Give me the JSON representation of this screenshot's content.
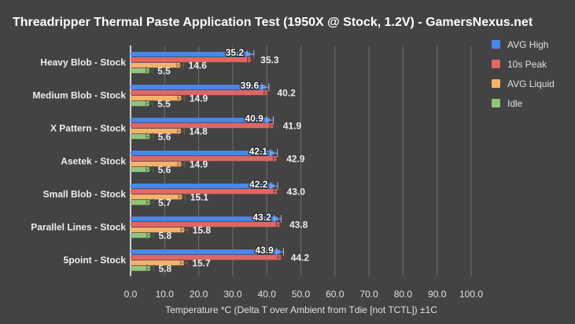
{
  "chart_data": {
    "type": "bar",
    "orientation": "horizontal",
    "title": "Threadripper Thermal Paste Application Test (1950X @ Stock, 1.2V) - GamersNexus.net",
    "xlabel": "Temperature *C (Delta T over Ambient from Tdie [not TCTL]) ±1C",
    "ylabel": "",
    "xlim": [
      0,
      100
    ],
    "xticks": [
      "0.0",
      "10.0",
      "20.0",
      "30.0",
      "40.0",
      "50.0",
      "60.0",
      "70.0",
      "80.0",
      "90.0",
      "100.0"
    ],
    "grid": true,
    "legend_position": "right",
    "error_bar": 1,
    "categories": [
      "Heavy Blob - Stock",
      "Medium Blob  - Stock",
      "X Pattern - Stock",
      "Asetek - Stock",
      "Small Blob - Stock",
      "Parallel Lines - Stock",
      "5point - Stock"
    ],
    "series": [
      {
        "name": "AVG High",
        "color": "#4a86e8",
        "values": [
          35.2,
          39.6,
          40.9,
          42.1,
          42.2,
          43.2,
          43.9
        ]
      },
      {
        "name": "10s Peak",
        "color": "#e06666",
        "values": [
          35.3,
          40.2,
          41.9,
          42.9,
          43.0,
          43.8,
          44.2
        ]
      },
      {
        "name": "AVG Liquid",
        "color": "#f6b26b",
        "values": [
          14.6,
          14.9,
          14.8,
          14.9,
          15.1,
          15.8,
          15.7
        ]
      },
      {
        "name": "Idle",
        "color": "#93c47d",
        "values": [
          5.5,
          5.5,
          5.6,
          5.6,
          5.7,
          5.8,
          5.8
        ]
      }
    ]
  }
}
